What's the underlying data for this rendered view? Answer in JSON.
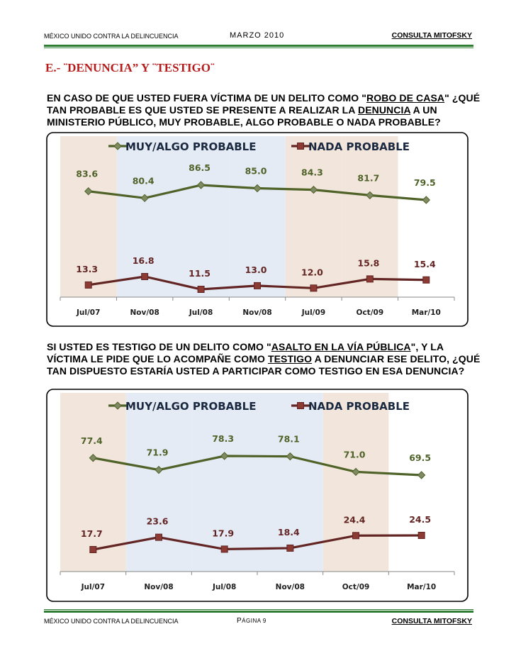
{
  "header": {
    "left": "MÉXICO UNIDO CONTRA LA DELINCUENCIA",
    "center": "MARZO 2010",
    "right": "CONSULTA MITOFSKY"
  },
  "section_title": "E.- ¨DENUNCIA” Y ¨TESTIGO¨",
  "question1": {
    "p1": "EN CASO DE QUE USTED FUERA VÍCTIMA DE UN DELITO COMO \"",
    "u1": "ROBO DE CASA",
    "p2": "\" ¿QUÉ  TAN PROBABLE ES QUE USTED SE PRESENTE A REALIZAR LA ",
    "u2": "DENUNCIA",
    "p3": " A UN MINISTERIO PÚBLICO, MUY PROBABLE, ALGO PROBABLE O NADA PROBABLE?"
  },
  "question2": {
    "p1": "SI USTED ES TESTIGO DE UN DELITO COMO \"",
    "u1": "ASALTO EN LA VÍA PÚBLICA",
    "p2": "\", Y LA VÍCTIMA LE PIDE QUE LO ACOMPAÑE COMO ",
    "u2": "TESTIGO",
    "p3": " A DENUNCIAR ESE DELITO, ¿QUÉ TAN DISPUESTO ESTARÍA USTED A PARTICIPAR COMO TESTIGO EN ESA DENUNCIA?"
  },
  "colors": {
    "series_green": "#4f6228",
    "series_red": "#632523",
    "label_green": "#4f6228",
    "label_red": "#632523",
    "band_tan": "#f2e6dc",
    "band_blue": "#e4ebf5"
  },
  "chart_data": [
    {
      "type": "line",
      "categories": [
        "Jul/07",
        "Nov/08",
        "Jul/08",
        "Nov/08",
        "Jul/09",
        "Oct/09",
        "Mar/10"
      ],
      "series": [
        {
          "name": "MUY/ALGO PROBABLE",
          "values": [
            83.6,
            80.4,
            86.5,
            85.0,
            84.3,
            81.7,
            79.5
          ]
        },
        {
          "name": "NADA PROBABLE",
          "values": [
            13.3,
            16.8,
            11.5,
            13.0,
            12.0,
            15.8,
            15.4
          ]
        }
      ],
      "value_labels": {
        "MUY/ALGO PROBABLE": [
          "83.6",
          "80.4",
          "86.5",
          "85.0",
          "84.3",
          "81.7",
          "79.5"
        ],
        "NADA PROBABLE": [
          "13.3",
          "16.8",
          "11.5",
          "13.0",
          "12.0",
          "15.8",
          "15.4"
        ]
      },
      "ylim": [
        0,
        100
      ],
      "legend": "top",
      "grid": false,
      "bands": [
        "tan",
        "blue",
        "blue",
        "blue",
        "tan",
        "tan",
        "none"
      ]
    },
    {
      "type": "line",
      "categories": [
        "Jul/07",
        "Nov/08",
        "Jul/08",
        "Nov/08",
        "Oct/09",
        "Mar/10"
      ],
      "series": [
        {
          "name": "MUY/ALGO PROBABLE",
          "values": [
            77.4,
            71.9,
            78.3,
            78.1,
            71.0,
            69.5
          ]
        },
        {
          "name": "NADA PROBABLE",
          "values": [
            17.7,
            23.6,
            17.9,
            18.4,
            24.4,
            24.5
          ]
        }
      ],
      "value_labels": {
        "MUY/ALGO PROBABLE": [
          "77.4",
          "71.9",
          "78.3",
          "78.1",
          "71.0",
          "69.5"
        ],
        "NADA PROBABLE": [
          "17.7",
          "23.6",
          "17.9",
          "18.4",
          "24.4",
          "24.5"
        ]
      },
      "ylim": [
        0,
        100
      ],
      "legend": "top",
      "grid": false,
      "bands": [
        "tan",
        "blue",
        "blue",
        "blue",
        "tan",
        "none"
      ]
    }
  ],
  "footer": {
    "left": "MÉXICO UNIDO CONTRA LA DELINCUENCIA",
    "center_prefix": "P",
    "center_rest": "ÁGINA 9",
    "right": "CONSULTA MITOFSKY"
  }
}
